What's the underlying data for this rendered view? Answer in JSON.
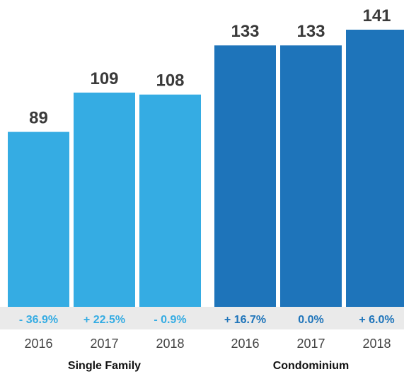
{
  "chart_data": {
    "type": "bar",
    "groups": [
      {
        "name": "Single Family",
        "color": "#35ACE3",
        "bars": [
          {
            "year": "2016",
            "value": 89,
            "change": "- 36.9%"
          },
          {
            "year": "2017",
            "value": 109,
            "change": "+ 22.5%"
          },
          {
            "year": "2018",
            "value": 108,
            "change": "- 0.9%"
          }
        ]
      },
      {
        "name": "Condominium",
        "color": "#1E74BA",
        "bars": [
          {
            "year": "2016",
            "value": 133,
            "change": "+ 16.7%"
          },
          {
            "year": "2017",
            "value": 133,
            "change": "0.0%"
          },
          {
            "year": "2018",
            "value": 141,
            "change": "+ 6.0%"
          }
        ]
      }
    ],
    "ylim": [
      0,
      141
    ],
    "grid": false
  },
  "colors": {
    "single_family": "#35ACE3",
    "condominium": "#1E74BA",
    "value_text": "#3a3a3a",
    "band": "#EAEAEA"
  }
}
